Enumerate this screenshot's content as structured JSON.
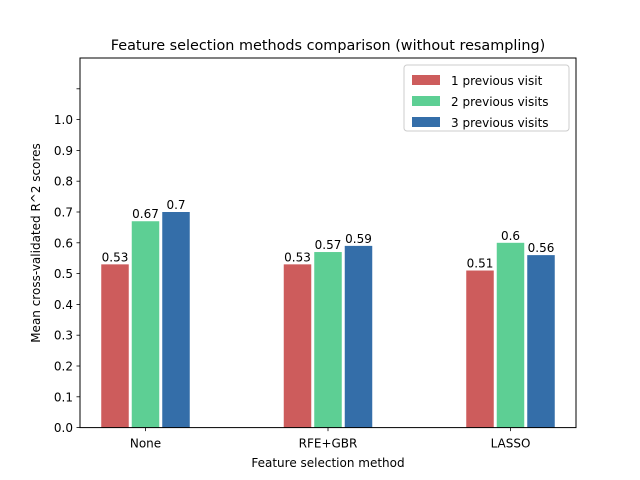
{
  "chart_data": {
    "type": "bar",
    "title": "Feature selection methods comparison (without resampling)",
    "xlabel": "Feature selection method",
    "ylabel": "Mean cross-validated R^2 scores",
    "categories": [
      "None",
      "RFE+GBR",
      "LASSO"
    ],
    "series": [
      {
        "name": "1 previous visit",
        "color": "#cd5c5c",
        "values": [
          0.53,
          0.53,
          0.51
        ],
        "labels": [
          "0.53",
          "0.53",
          "0.51"
        ]
      },
      {
        "name": "2 previous visits",
        "color": "#5dcf94",
        "values": [
          0.67,
          0.57,
          0.6
        ],
        "labels": [
          "0.67",
          "0.57",
          "0.6"
        ]
      },
      {
        "name": "3 previous visits",
        "color": "#346ea9",
        "values": [
          0.7,
          0.59,
          0.56
        ],
        "labels": [
          "0.7",
          "0.59",
          "0.56"
        ]
      }
    ],
    "ylim": [
      0,
      1.2
    ],
    "yticks": [
      "0.0",
      "0.1",
      "0.2",
      "0.3",
      "0.4",
      "0.5",
      "0.6",
      "0.7",
      "0.8",
      "0.9",
      "1.0"
    ],
    "grid": false,
    "legend_position": "top-right"
  }
}
